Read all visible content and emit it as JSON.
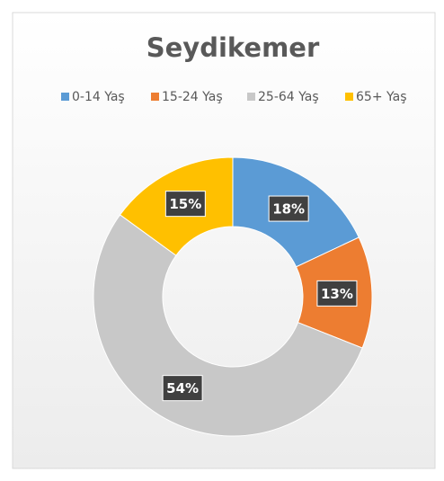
{
  "chart_data": {
    "type": "donut",
    "title": "Seydikemer",
    "categories": [
      "0-14 Yaş",
      "15-24 Yaş",
      "25-64 Yaş",
      "65+ Yaş"
    ],
    "values": [
      18,
      13,
      54,
      15
    ],
    "value_labels": [
      "18%",
      "13%",
      "54%",
      "15%"
    ],
    "colors": [
      "#5b9bd5",
      "#ed7d31",
      "#c8c8c8",
      "#ffc000"
    ],
    "legend": "top"
  }
}
